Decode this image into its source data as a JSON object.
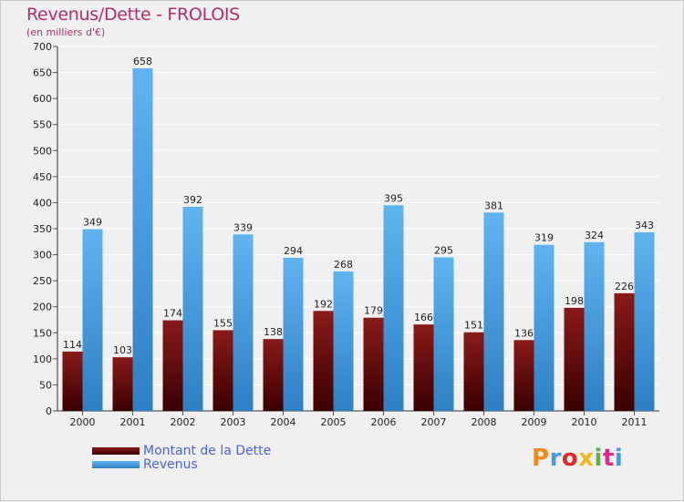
{
  "chart_data": {
    "type": "bar",
    "title": "Revenus/Dette - FROLOIS",
    "subtitle": "(en milliers d'€)",
    "categories": [
      "2000",
      "2001",
      "2002",
      "2003",
      "2004",
      "2005",
      "2006",
      "2007",
      "2008",
      "2009",
      "2010",
      "2011"
    ],
    "series": [
      {
        "name": "Montant de la Dette",
        "color": "#6b0a0a",
        "values": [
          114,
          103,
          174,
          155,
          138,
          192,
          179,
          166,
          151,
          136,
          198,
          226
        ]
      },
      {
        "name": "Revenus",
        "color": "#4aa3e6",
        "values": [
          349,
          658,
          392,
          339,
          294,
          268,
          395,
          295,
          381,
          319,
          324,
          343
        ]
      }
    ],
    "ylim": [
      0,
      700
    ],
    "yticks": [
      0,
      50,
      100,
      150,
      200,
      250,
      300,
      350,
      400,
      450,
      500,
      550,
      600,
      650,
      700
    ],
    "grid": true,
    "legend": "bottom-left"
  },
  "logo": {
    "text": "Proxiti",
    "colors": [
      "#f08a1c",
      "#4a9ae0",
      "#e02a2a",
      "#f0b81c",
      "#5ab04a",
      "#e02a8a",
      "#4a9ae0"
    ]
  }
}
